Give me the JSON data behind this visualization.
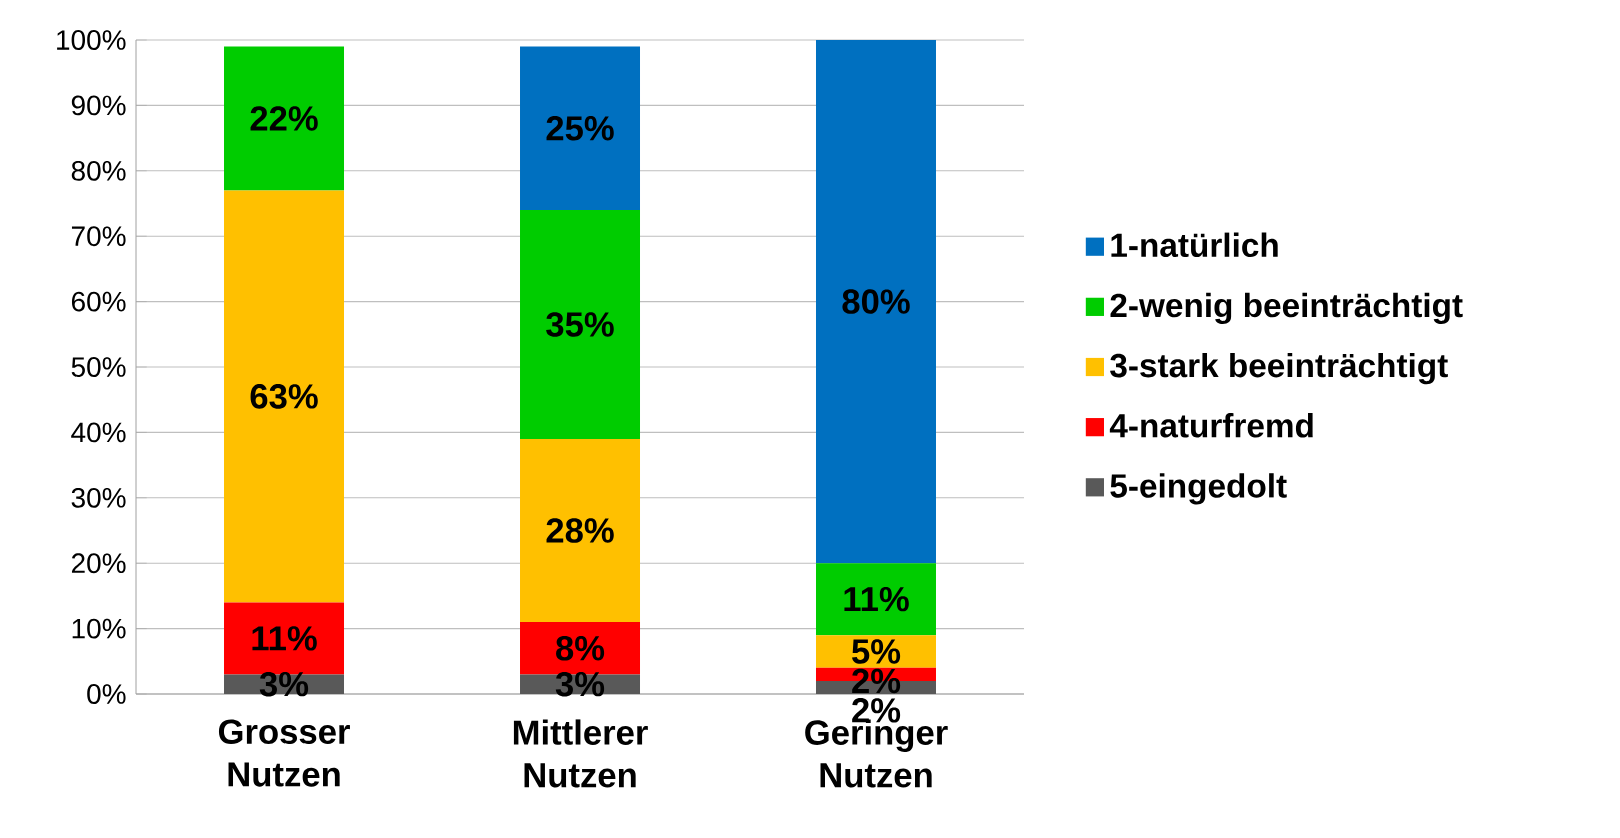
{
  "chart_data": {
    "type": "bar",
    "stacked": true,
    "categories": [
      "Grosser Nutzen",
      "Mittlerer Nutzen",
      "Geringer Nutzen"
    ],
    "series": [
      {
        "name": "5-eingedolt",
        "color": "#595959",
        "values": [
          3,
          3,
          2
        ],
        "value_labels": [
          "3%",
          "3%",
          "2%"
        ]
      },
      {
        "name": "4-naturfremd",
        "color": "#ff0000",
        "values": [
          11,
          8,
          2
        ],
        "value_labels": [
          "11%",
          "8%",
          "2%"
        ]
      },
      {
        "name": "3-stark beeinträchtigt",
        "color": "#ffc000",
        "values": [
          63,
          28,
          5
        ],
        "value_labels": [
          "63%",
          "28%",
          "5%"
        ]
      },
      {
        "name": "2-wenig beeinträchtigt",
        "color": "#00cc00",
        "values": [
          22,
          35,
          11
        ],
        "value_labels": [
          "22%",
          "35%",
          "11%"
        ]
      },
      {
        "name": "1-natürlich",
        "color": "#0070c0",
        "values": [
          null,
          25,
          80
        ],
        "value_labels": [
          null,
          "25%",
          "80%"
        ]
      }
    ],
    "ylim": [
      0,
      100
    ],
    "yticks": [
      {
        "value": 0,
        "label": "0%"
      },
      {
        "value": 10,
        "label": "10%"
      },
      {
        "value": 20,
        "label": "20%"
      },
      {
        "value": 30,
        "label": "30%"
      },
      {
        "value": 40,
        "label": "40%"
      },
      {
        "value": 50,
        "label": "50%"
      },
      {
        "value": 60,
        "label": "60%"
      },
      {
        "value": 70,
        "label": "70%"
      },
      {
        "value": 80,
        "label": "80%"
      },
      {
        "value": 90,
        "label": "90%"
      },
      {
        "value": 100,
        "label": "100%"
      }
    ],
    "grid": "y",
    "legend": "right"
  }
}
